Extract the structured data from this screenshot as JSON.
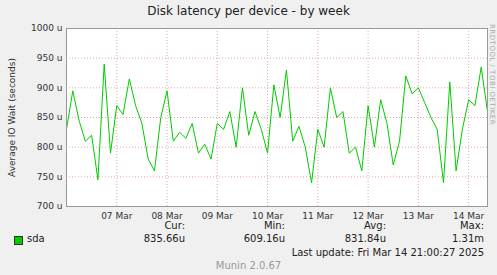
{
  "chart_data": {
    "type": "line",
    "title": "Disk latency per device - by week",
    "y_label": "Average IO Wait (seconds)",
    "xlim": [
      6.5,
      14.875
    ],
    "xticks": [
      {
        "value": 7.5,
        "label": "07 Mar"
      },
      {
        "value": 8.5,
        "label": "08 Mar"
      },
      {
        "value": 9.5,
        "label": "09 Mar"
      },
      {
        "value": 10.5,
        "label": "10 Mar"
      },
      {
        "value": 11.5,
        "label": "11 Mar"
      },
      {
        "value": 12.5,
        "label": "12 Mar"
      },
      {
        "value": 13.5,
        "label": "13 Mar"
      },
      {
        "value": 14.5,
        "label": "14 Mar"
      }
    ],
    "ylim": [
      700,
      1000
    ],
    "yticks": [
      {
        "value": 700,
        "label": "700 u"
      },
      {
        "value": 750,
        "label": "750 u"
      },
      {
        "value": 800,
        "label": "800 u"
      },
      {
        "value": 850,
        "label": "850 u"
      },
      {
        "value": 900,
        "label": "900 u"
      },
      {
        "value": 950,
        "label": "950 u"
      },
      {
        "value": 1000,
        "label": "1000 u"
      }
    ],
    "grid": true,
    "x": [
      6.5,
      6.625,
      6.75,
      6.875,
      7.0,
      7.125,
      7.25,
      7.375,
      7.5,
      7.625,
      7.75,
      7.875,
      8.0,
      8.125,
      8.25,
      8.375,
      8.5,
      8.625,
      8.75,
      8.875,
      9.0,
      9.125,
      9.25,
      9.375,
      9.5,
      9.625,
      9.75,
      9.875,
      10.0,
      10.125,
      10.25,
      10.375,
      10.5,
      10.625,
      10.75,
      10.875,
      11.0,
      11.125,
      11.25,
      11.375,
      11.5,
      11.625,
      11.75,
      11.875,
      12.0,
      12.125,
      12.25,
      12.375,
      12.5,
      12.625,
      12.75,
      12.875,
      13.0,
      13.125,
      13.25,
      13.375,
      13.5,
      13.625,
      13.75,
      13.875,
      14.0,
      14.125,
      14.25,
      14.375,
      14.5,
      14.625,
      14.75,
      14.875
    ],
    "series": [
      {
        "name": "sda",
        "color": "#00cc00",
        "values": [
          830,
          895,
          845,
          810,
          820,
          745,
          940,
          790,
          870,
          855,
          915,
          870,
          840,
          780,
          760,
          850,
          895,
          810,
          825,
          815,
          840,
          790,
          805,
          780,
          840,
          830,
          860,
          800,
          900,
          820,
          860,
          830,
          790,
          905,
          850,
          930,
          810,
          835,
          800,
          740,
          830,
          800,
          900,
          850,
          860,
          790,
          800,
          760,
          870,
          800,
          880,
          840,
          770,
          810,
          920,
          890,
          900,
          875,
          850,
          830,
          740,
          910,
          760,
          830,
          880,
          870,
          935,
          860
        ]
      }
    ],
    "stats": {
      "columns": [
        "Cur:",
        "Min:",
        "Avg:",
        "Max:"
      ],
      "values": [
        "835.66u",
        "609.16u",
        "831.84u",
        "1.31m"
      ]
    },
    "last_update": "Last update: Fri Mar 14 21:00:27 2025",
    "credit": "Munin 2.0.67",
    "watermark": "RRDTOOL / TOBI OETIKER"
  }
}
